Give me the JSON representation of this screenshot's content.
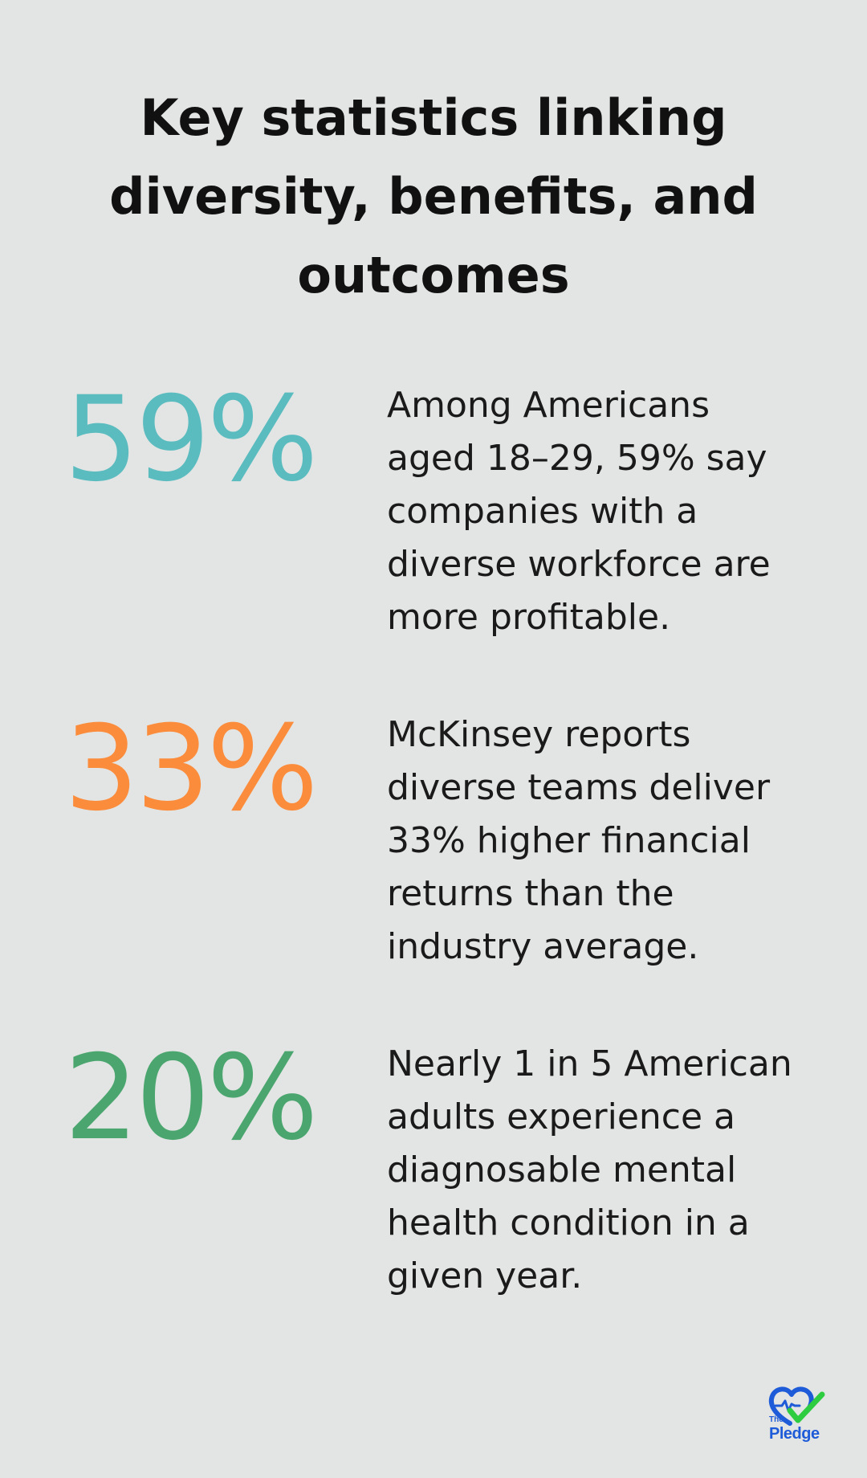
{
  "title": "Key statistics linking diversity, benefits, and outcomes",
  "stats": [
    {
      "value": "59%",
      "color": "#5bbcc0",
      "text": "Among Americans aged 18–29, 59% say companies with a diverse workforce are more profitable."
    },
    {
      "value": "33%",
      "color": "#fb8c3c",
      "text": "McKinsey reports diverse teams deliver 33% higher financial returns than the industry average."
    },
    {
      "value": "20%",
      "color": "#4aa66e",
      "text": "Nearly 1 in 5 American adults experience a diagnosable mental health condition in a given year."
    }
  ],
  "logo": {
    "small": "The",
    "name": "Pledge",
    "icon": "heart-check-icon",
    "heart_color": "#1e5bd8",
    "check_color": "#2ecc40"
  }
}
